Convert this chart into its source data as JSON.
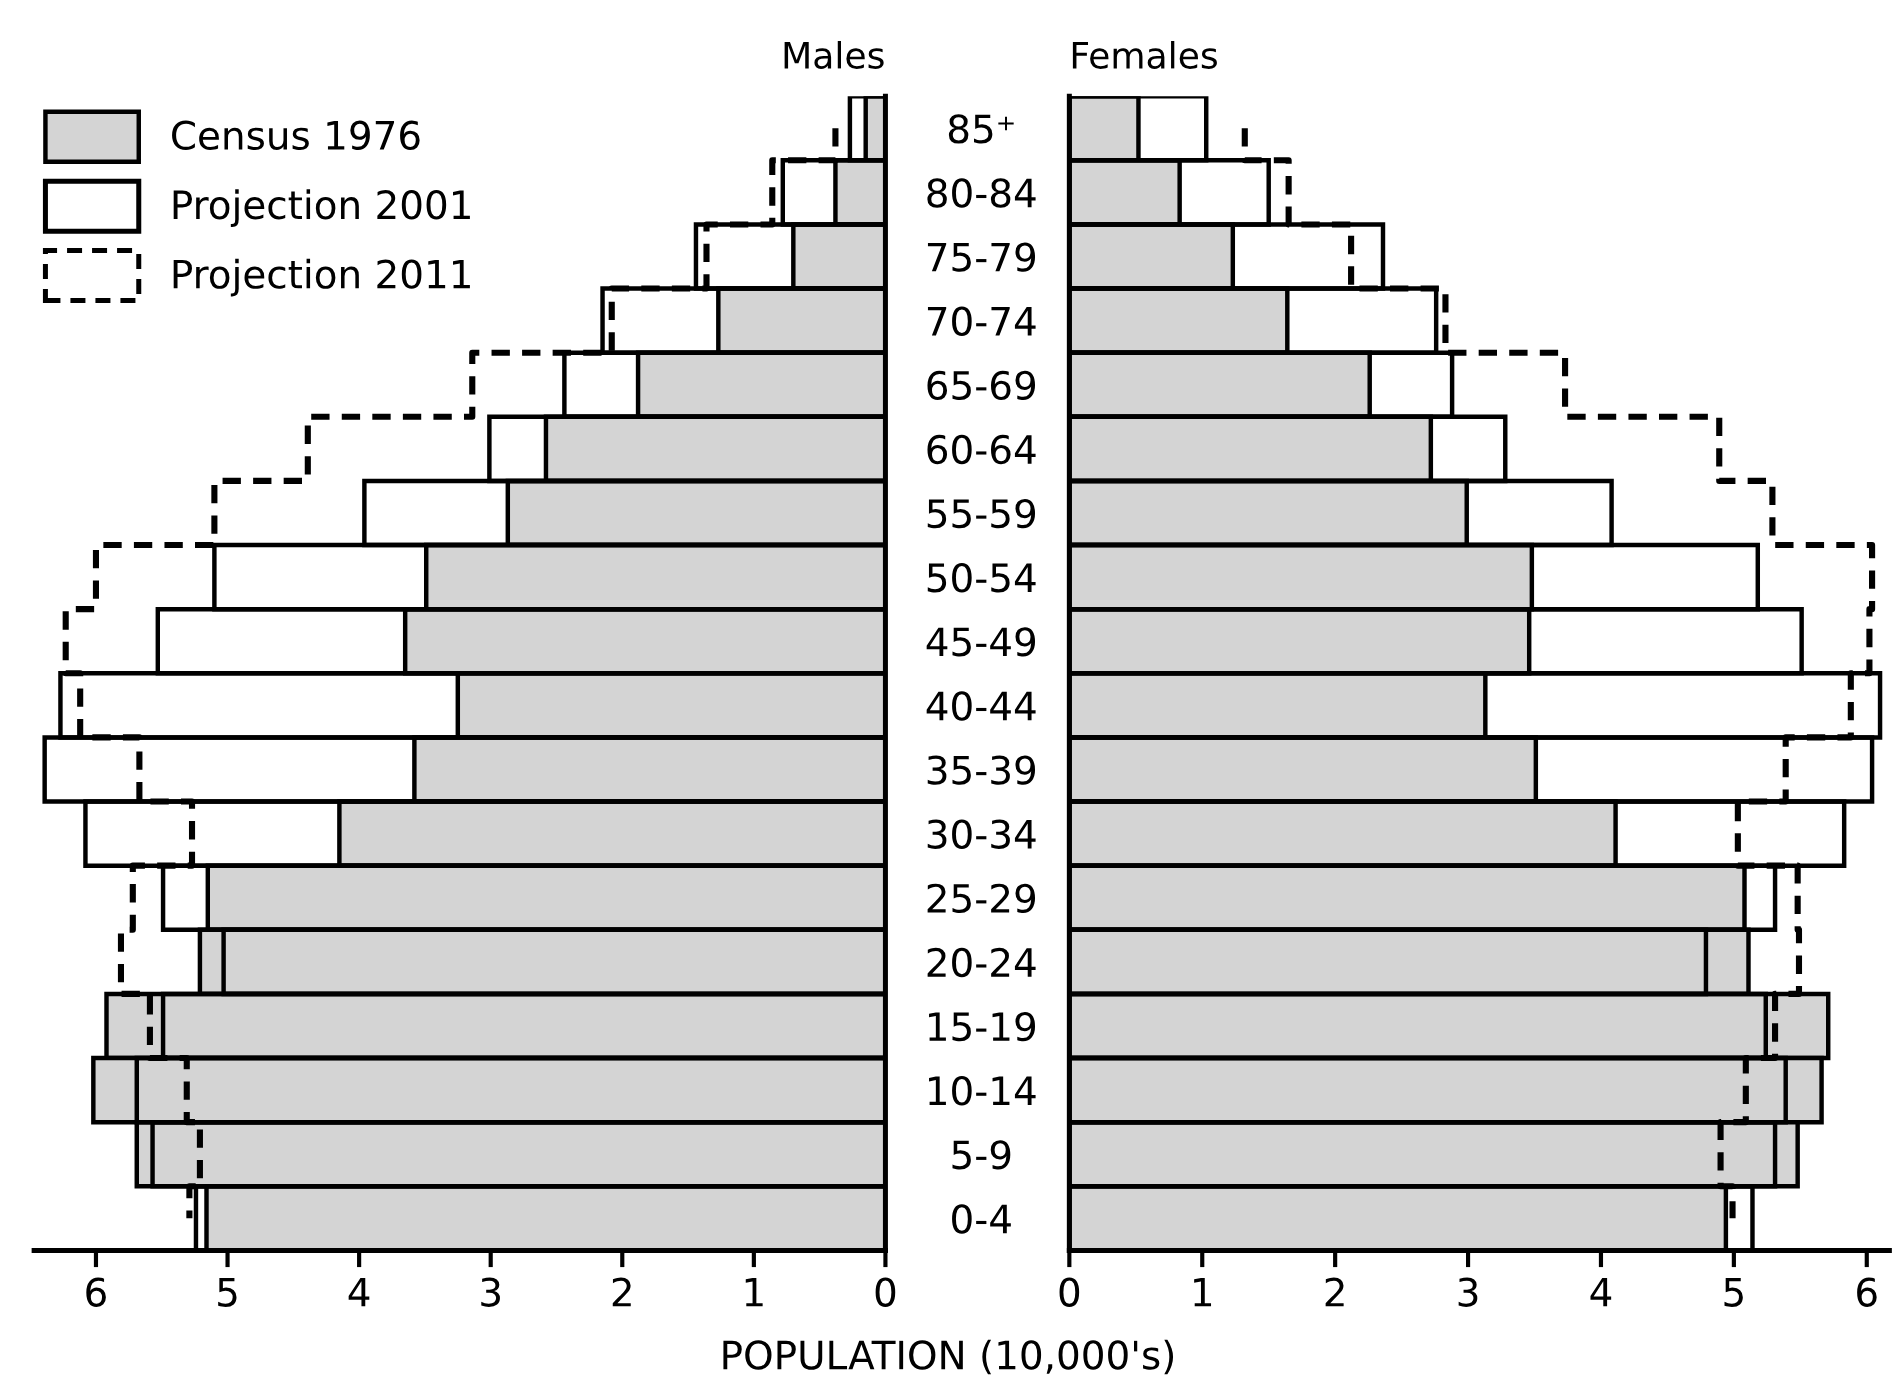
{
  "chart_data": [
    {
      "type": "bar",
      "orientation": "horizontal",
      "title": "Males",
      "categories": [
        "85⁺",
        "80-84",
        "75-79",
        "70-74",
        "65-69",
        "60-64",
        "55-59",
        "50-54",
        "45-49",
        "40-44",
        "35-39",
        "30-34",
        "25-29",
        "20-24",
        "15-19",
        "10-14",
        "5-9",
        "0-4"
      ],
      "series": [
        {
          "name": "Census 1976",
          "color": "#d4d4d4",
          "values": [
            0.15,
            0.38,
            0.7,
            1.27,
            1.88,
            2.58,
            2.87,
            3.49,
            3.65,
            3.25,
            3.58,
            4.15,
            5.15,
            5.21,
            5.92,
            6.02,
            5.69,
            5.16
          ]
        },
        {
          "name": "Projection 2001",
          "color": "#000000",
          "line_style": "solid",
          "values": [
            0.27,
            0.78,
            1.44,
            2.15,
            2.44,
            3.01,
            3.96,
            5.1,
            5.53,
            6.27,
            6.39,
            6.08,
            5.49,
            5.03,
            5.49,
            5.69,
            5.57,
            5.24
          ]
        },
        {
          "name": "Projection 2011",
          "type": "step",
          "color": "#000000",
          "line_style": "dashed",
          "values": [
            0.38,
            0.86,
            1.36,
            2.08,
            3.14,
            4.39,
            5.1,
            6.0,
            6.23,
            6.12,
            5.67,
            5.27,
            5.72,
            5.81,
            5.59,
            5.31,
            5.21,
            5.29
          ]
        }
      ],
      "xlim": [
        6.47,
        0
      ],
      "xticks": [
        6,
        5,
        4,
        3,
        2,
        1,
        0
      ],
      "xlabel": "POPULATION (10,000's)",
      "legend": "top left",
      "grid": false
    },
    {
      "type": "bar",
      "orientation": "horizontal",
      "title": "Females",
      "series": [
        {
          "color": "#d4d4d4",
          "values": [
            0.52,
            0.83,
            1.23,
            1.64,
            2.26,
            2.72,
            2.99,
            3.48,
            3.46,
            3.13,
            3.51,
            4.11,
            5.08,
            5.11,
            5.71,
            5.66,
            5.48,
            4.94
          ]
        },
        {
          "color": "#000000",
          "line_style": "solid",
          "values": [
            1.03,
            1.5,
            2.36,
            2.76,
            2.88,
            3.28,
            4.08,
            5.18,
            5.51,
            6.1,
            6.04,
            5.83,
            5.31,
            4.79,
            5.24,
            5.39,
            5.31,
            5.14
          ]
        },
        {
          "type": "step",
          "color": "#000000",
          "line_style": "dashed",
          "values": [
            1.32,
            1.65,
            2.12,
            2.83,
            3.73,
            4.89,
            5.29,
            6.04,
            6.02,
            5.88,
            5.39,
            5.03,
            5.48,
            5.49,
            5.31,
            5.09,
            4.9,
            4.99
          ]
        }
      ],
      "xlim": [
        0,
        6.17
      ],
      "xticks": [
        0,
        1,
        2,
        3,
        4,
        5,
        6
      ],
      "tick_labels": "x",
      "grid": false
    }
  ]
}
